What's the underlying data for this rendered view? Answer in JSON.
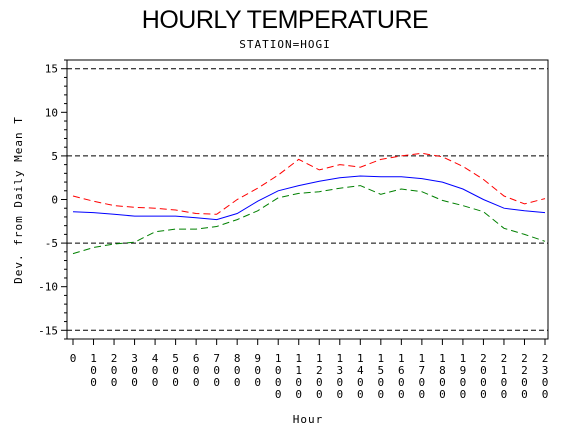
{
  "chart_data": {
    "type": "line",
    "title": "HOURLY TEMPERATURE",
    "subtitle": "STATION=HOGI",
    "xlabel": "Hour",
    "ylabel": "Dev. from Daily Mean T",
    "ylim": [
      -16,
      16
    ],
    "y_ticks": [
      15,
      10,
      5,
      0,
      -5,
      -10,
      -15
    ],
    "y_tick_labels": [
      "15",
      "10",
      "5",
      "0",
      "-5",
      "-10",
      "-15"
    ],
    "x_tick_labels": [
      "0",
      "100",
      "200",
      "300",
      "400",
      "500",
      "600",
      "700",
      "800",
      "900",
      "1000",
      "1100",
      "1200",
      "1300",
      "1400",
      "1500",
      "1600",
      "1700",
      "1800",
      "1900",
      "2000",
      "2100",
      "2200",
      "2300"
    ],
    "reference_lines": [
      15,
      5,
      -5,
      -15
    ],
    "grid": false,
    "legend": "none",
    "series": [
      {
        "color": "#ff0000",
        "dash": "dashed",
        "values": [
          0.4,
          -0.2,
          -0.7,
          -0.9,
          -1.0,
          -1.2,
          -1.6,
          -1.7,
          0.0,
          1.3,
          2.8,
          4.6,
          3.4,
          4.0,
          3.7,
          4.6,
          5.0,
          5.3,
          4.9,
          3.8,
          2.3,
          0.4,
          -0.5,
          0.1
        ]
      },
      {
        "color": "#0000ff",
        "dash": "solid",
        "values": [
          -1.4,
          -1.5,
          -1.7,
          -1.9,
          -1.9,
          -1.9,
          -2.1,
          -2.3,
          -1.6,
          -0.2,
          1.0,
          1.6,
          2.1,
          2.5,
          2.7,
          2.6,
          2.6,
          2.4,
          2.0,
          1.2,
          0.0,
          -1.0,
          -1.3,
          -1.5
        ]
      },
      {
        "color": "#008000",
        "dash": "dashed",
        "values": [
          -6.2,
          -5.5,
          -5.1,
          -4.9,
          -3.7,
          -3.4,
          -3.4,
          -3.1,
          -2.3,
          -1.3,
          0.2,
          0.7,
          0.9,
          1.3,
          1.6,
          0.6,
          1.2,
          0.9,
          -0.1,
          -0.7,
          -1.4,
          -3.3,
          -4.0,
          -4.8
        ]
      }
    ]
  }
}
